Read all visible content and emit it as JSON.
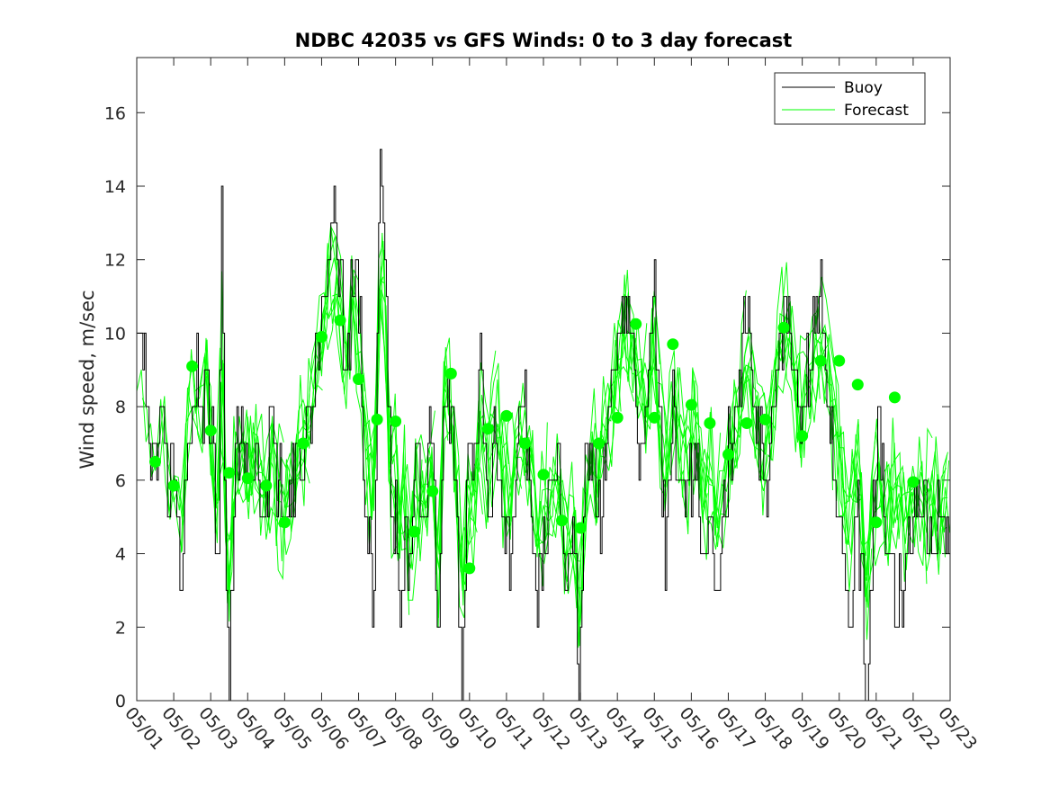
{
  "chart_data": {
    "type": "line",
    "title": "NDBC 42035 vs GFS Winds: 0 to 3 day forecast",
    "xlabel": "",
    "ylabel": "Wind speed, m/sec",
    "xlim": [
      0,
      22
    ],
    "ylim": [
      0,
      17.5
    ],
    "yticks": [
      0,
      2,
      4,
      6,
      8,
      10,
      12,
      14,
      16
    ],
    "xtick_labels": [
      "05/01",
      "05/02",
      "05/03",
      "05/04",
      "05/05",
      "05/06",
      "05/07",
      "05/08",
      "05/09",
      "05/10",
      "05/11",
      "05/12",
      "05/13",
      "05/14",
      "05/15",
      "05/16",
      "05/17",
      "05/18",
      "05/19",
      "05/20",
      "05/21",
      "05/22",
      "05/23"
    ],
    "legend": {
      "position": "top-right",
      "entries": [
        "Buoy",
        "Forecast"
      ]
    },
    "colors": {
      "buoy": "#000000",
      "forecast": "#00ff00",
      "markers": "#00ff00"
    },
    "buoy_anchor": [
      [
        0.0,
        10
      ],
      [
        0.2,
        9
      ],
      [
        0.35,
        7
      ],
      [
        0.5,
        6
      ],
      [
        0.7,
        9
      ],
      [
        0.85,
        6
      ],
      [
        1.0,
        6
      ],
      [
        1.1,
        4
      ],
      [
        1.2,
        2
      ],
      [
        1.3,
        6
      ],
      [
        1.45,
        8
      ],
      [
        1.6,
        9
      ],
      [
        1.75,
        8
      ],
      [
        1.9,
        9
      ],
      [
        2.05,
        7
      ],
      [
        2.1,
        6
      ],
      [
        2.2,
        3
      ],
      [
        2.3,
        14
      ],
      [
        2.4,
        4
      ],
      [
        2.5,
        0
      ],
      [
        2.6,
        5
      ],
      [
        2.8,
        8
      ],
      [
        2.95,
        6
      ],
      [
        3.1,
        7
      ],
      [
        3.3,
        6
      ],
      [
        3.5,
        5
      ],
      [
        3.65,
        8
      ],
      [
        3.8,
        6
      ],
      [
        4.0,
        5
      ],
      [
        4.2,
        6
      ],
      [
        4.35,
        7
      ],
      [
        4.5,
        7
      ],
      [
        4.75,
        8
      ],
      [
        4.9,
        10
      ],
      [
        5.05,
        11
      ],
      [
        5.2,
        12
      ],
      [
        5.35,
        13
      ],
      [
        5.5,
        12
      ],
      [
        5.6,
        9
      ],
      [
        5.75,
        10
      ],
      [
        5.9,
        12
      ],
      [
        6.0,
        11
      ],
      [
        6.1,
        8
      ],
      [
        6.2,
        4
      ],
      [
        6.3,
        5
      ],
      [
        6.4,
        2
      ],
      [
        6.55,
        14
      ],
      [
        6.65,
        15
      ],
      [
        6.8,
        8
      ],
      [
        6.9,
        4
      ],
      [
        7.0,
        6
      ],
      [
        7.1,
        2
      ],
      [
        7.25,
        5
      ],
      [
        7.4,
        3
      ],
      [
        7.55,
        7
      ],
      [
        7.7,
        5
      ],
      [
        7.85,
        6
      ],
      [
        7.95,
        8
      ],
      [
        8.05,
        6
      ],
      [
        8.15,
        0
      ],
      [
        8.3,
        9
      ],
      [
        8.45,
        8
      ],
      [
        8.6,
        6
      ],
      [
        8.8,
        0
      ],
      [
        8.95,
        7
      ],
      [
        9.1,
        6
      ],
      [
        9.3,
        10
      ],
      [
        9.5,
        4
      ],
      [
        9.7,
        8
      ],
      [
        9.9,
        5
      ],
      [
        10.1,
        4
      ],
      [
        10.3,
        7
      ],
      [
        10.45,
        9
      ],
      [
        10.6,
        6
      ],
      [
        10.8,
        3
      ],
      [
        11.0,
        4
      ],
      [
        11.2,
        7
      ],
      [
        11.4,
        6
      ],
      [
        11.6,
        3
      ],
      [
        11.8,
        5
      ],
      [
        11.95,
        1
      ],
      [
        12.1,
        6
      ],
      [
        12.3,
        7
      ],
      [
        12.5,
        5
      ],
      [
        12.7,
        7
      ],
      [
        12.9,
        9
      ],
      [
        13.05,
        10
      ],
      [
        13.2,
        11
      ],
      [
        13.35,
        10
      ],
      [
        13.5,
        8
      ],
      [
        13.7,
        7
      ],
      [
        13.9,
        9
      ],
      [
        14.0,
        12
      ],
      [
        14.1,
        8
      ],
      [
        14.3,
        4
      ],
      [
        14.5,
        8
      ],
      [
        14.7,
        6
      ],
      [
        14.9,
        5
      ],
      [
        15.1,
        7
      ],
      [
        15.3,
        4
      ],
      [
        15.5,
        5
      ],
      [
        15.7,
        3
      ],
      [
        15.9,
        6
      ],
      [
        16.1,
        7
      ],
      [
        16.35,
        9
      ],
      [
        16.5,
        11
      ],
      [
        16.7,
        8
      ],
      [
        16.85,
        7
      ],
      [
        17.05,
        6
      ],
      [
        17.25,
        8
      ],
      [
        17.45,
        10
      ],
      [
        17.6,
        11
      ],
      [
        17.8,
        9
      ],
      [
        17.95,
        8
      ],
      [
        18.15,
        9
      ],
      [
        18.35,
        10
      ],
      [
        18.5,
        11
      ],
      [
        18.65,
        9
      ],
      [
        18.8,
        7
      ],
      [
        18.9,
        6
      ],
      [
        19.0,
        5
      ],
      [
        19.15,
        4
      ],
      [
        19.3,
        1
      ],
      [
        19.45,
        6
      ],
      [
        19.6,
        3
      ],
      [
        19.75,
        0
      ],
      [
        19.9,
        5
      ],
      [
        20.05,
        8
      ],
      [
        20.2,
        5
      ],
      [
        20.35,
        4
      ],
      [
        20.55,
        3
      ],
      [
        20.75,
        3
      ],
      [
        21.0,
        5
      ],
      [
        21.25,
        6
      ],
      [
        21.5,
        4
      ],
      [
        21.75,
        5
      ],
      [
        22.0,
        5
      ]
    ],
    "forecast_markers": [
      [
        0.5,
        6.5
      ],
      [
        1.0,
        5.85
      ],
      [
        1.5,
        9.1
      ],
      [
        2.0,
        7.35
      ],
      [
        2.5,
        6.2
      ],
      [
        3.0,
        6.05
      ],
      [
        3.5,
        5.85
      ],
      [
        4.0,
        4.85
      ],
      [
        4.5,
        7.0
      ],
      [
        5.0,
        9.9
      ],
      [
        5.5,
        10.35
      ],
      [
        6.0,
        8.75
      ],
      [
        6.5,
        7.65
      ],
      [
        7.0,
        7.6
      ],
      [
        7.5,
        4.6
      ],
      [
        8.0,
        5.7
      ],
      [
        8.5,
        8.9
      ],
      [
        9.0,
        3.6
      ],
      [
        9.5,
        7.4
      ],
      [
        10.0,
        7.75
      ],
      [
        10.5,
        7.0
      ],
      [
        11.0,
        6.15
      ],
      [
        11.5,
        4.9
      ],
      [
        12.0,
        4.7
      ],
      [
        12.5,
        7.0
      ],
      [
        13.0,
        7.7
      ],
      [
        13.5,
        10.25
      ],
      [
        14.0,
        7.7
      ],
      [
        14.5,
        9.7
      ],
      [
        15.0,
        8.05
      ],
      [
        15.5,
        7.55
      ],
      [
        16.0,
        6.7
      ],
      [
        16.5,
        7.55
      ],
      [
        17.0,
        7.65
      ],
      [
        17.5,
        10.15
      ],
      [
        18.0,
        7.2
      ],
      [
        18.5,
        9.25
      ],
      [
        19.0,
        9.25
      ],
      [
        19.5,
        8.6
      ],
      [
        20.0,
        4.85
      ],
      [
        20.5,
        8.25
      ],
      [
        21.0,
        5.95
      ]
    ],
    "forecast_run_spread_note": "Multiple green forecast runs overlay the marker path"
  }
}
